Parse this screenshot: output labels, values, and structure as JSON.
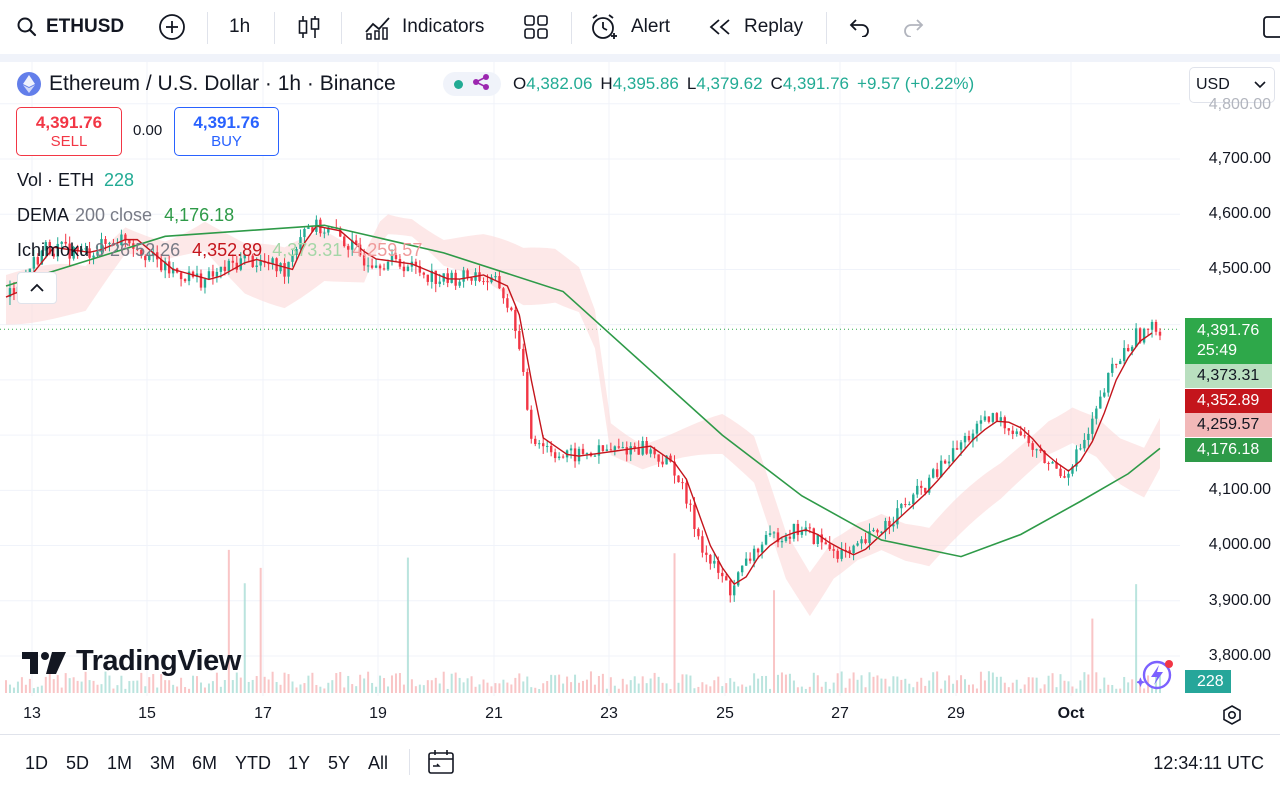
{
  "toolbar": {
    "symbol": "ETHUSD",
    "interval": "1h",
    "indicators_label": "Indicators",
    "alert_label": "Alert",
    "replay_label": "Replay"
  },
  "legend": {
    "title": "Ethereum / U.S. Dollar · 1h · Binance",
    "ohlc": {
      "o_label": "O",
      "o": "4,382.06",
      "h_label": "H",
      "h": "4,395.86",
      "l_label": "L",
      "l": "4,379.62",
      "c_label": "C",
      "c": "4,391.76",
      "change": "+9.57 (+0.22%)"
    },
    "currency": "USD"
  },
  "trade": {
    "sell_price": "4,391.76",
    "sell_label": "SELL",
    "spread": "0.00",
    "buy_price": "4,391.76",
    "buy_label": "BUY"
  },
  "indicators": {
    "vol": {
      "name": "Vol · ETH",
      "value": "228"
    },
    "dema": {
      "name": "DEMA",
      "params": "200 close",
      "value": "4,176.18"
    },
    "ichimoku": {
      "name": "Ichimoku",
      "params": "9 26 52 26",
      "v1": "4,352.89",
      "v2": "4,373.31",
      "v3": "4,259.57"
    }
  },
  "price_axis": {
    "top_partial": "4,800.00",
    "ticks": [
      "4,700.00",
      "4,600.00",
      "4,500.00",
      "4,100.00",
      "4,000.00",
      "3,900.00",
      "3,800.00"
    ],
    "last_price": "4,391.76",
    "countdown": "25:49",
    "tag_span_a": "4,373.31",
    "tag_conversion": "4,352.89",
    "tag_span_b": "4,259.57",
    "tag_dema": "4,176.18",
    "tag_volume": "228"
  },
  "time_axis": [
    "13",
    "15",
    "17",
    "19",
    "21",
    "23",
    "25",
    "27",
    "29",
    "Oct"
  ],
  "bottom": {
    "ranges": [
      "1D",
      "5D",
      "1M",
      "3M",
      "6M",
      "YTD",
      "1Y",
      "5Y",
      "All"
    ],
    "clock": "12:34:11 UTC"
  },
  "logo_text": "TradingView",
  "colors": {
    "up": "#22ab94",
    "down": "#f23645",
    "dema_line": "#2e9a48",
    "conversion_line": "#c4151c",
    "cloud_bull": "#c8e6c9",
    "cloud_bear": "#fbd5d5",
    "accent": "#2962ff"
  }
}
